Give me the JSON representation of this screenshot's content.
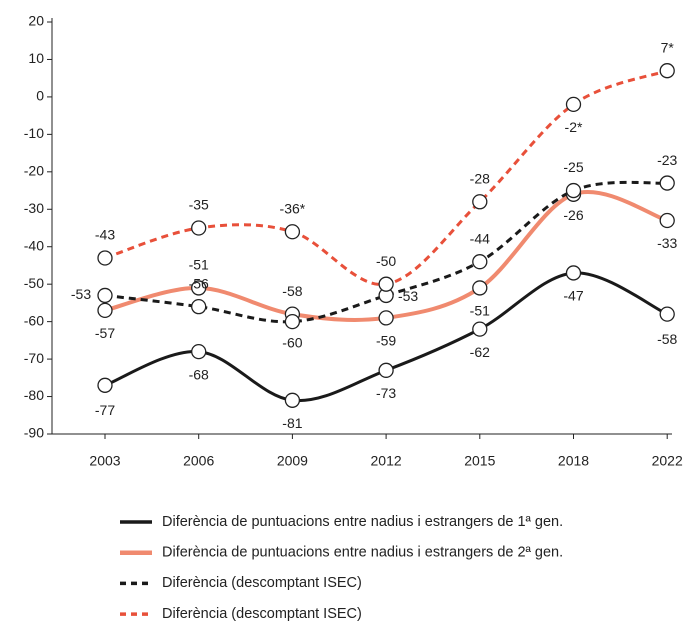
{
  "chart_data": {
    "type": "line",
    "categories": [
      "2003",
      "2006",
      "2009",
      "2012",
      "2015",
      "2018",
      "2022"
    ],
    "series": [
      {
        "name": "Diferència de puntuacions entre nadius i estrangers de 1ª gen.",
        "color": "#1a1a1a",
        "dash": false,
        "values": [
          -77,
          -68,
          -81,
          -73,
          -62,
          -47,
          -58
        ]
      },
      {
        "name": "Diferència de puntuacions entre nadius i estrangers de 2ª gen.",
        "color": "#f08a6f",
        "dash": false,
        "values": [
          -57,
          -51,
          -58,
          -59,
          -51,
          -26,
          -33
        ]
      },
      {
        "name": "Diferència (descomptant ISEC)",
        "color": "#1a1a1a",
        "dash": true,
        "values": [
          -53,
          -56,
          -60,
          -53,
          -44,
          -25,
          -23
        ]
      },
      {
        "name": "Diferència (descomptant ISEC)",
        "color": "#e8503a",
        "dash": true,
        "values": [
          -43,
          -35,
          -36,
          -50,
          -28,
          -2,
          7
        ],
        "value_labels": [
          "-43",
          "-35",
          "-36*",
          "-50",
          "-28",
          "-2*",
          "7*"
        ]
      }
    ],
    "ylim": [
      -90,
      20
    ],
    "yticks": [
      -90,
      -80,
      -70,
      -60,
      -50,
      -40,
      -30,
      -20,
      -10,
      0,
      10,
      20
    ],
    "grid": false
  }
}
